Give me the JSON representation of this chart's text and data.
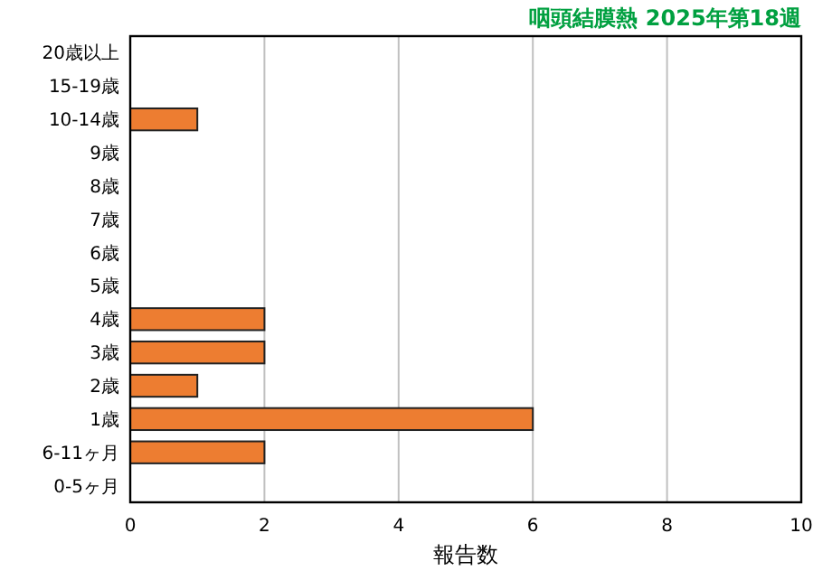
{
  "chart_data": {
    "type": "bar",
    "orientation": "horizontal",
    "title": "咽頭結膜熱 2025年第18週",
    "xlabel": "報告数",
    "categories": [
      "20歳以上",
      "15-19歳",
      "10-14歳",
      "9歳",
      "8歳",
      "7歳",
      "6歳",
      "5歳",
      "4歳",
      "3歳",
      "2歳",
      "1歳",
      "6-11ヶ月",
      "0-5ヶ月"
    ],
    "values": [
      0,
      0,
      1,
      0,
      0,
      0,
      0,
      0,
      2,
      2,
      1,
      6,
      2,
      0
    ],
    "color": "#ed7d31",
    "xlim": [
      0,
      10
    ],
    "xticks": [
      0,
      2,
      4,
      6,
      8,
      10
    ],
    "grid": "x"
  }
}
